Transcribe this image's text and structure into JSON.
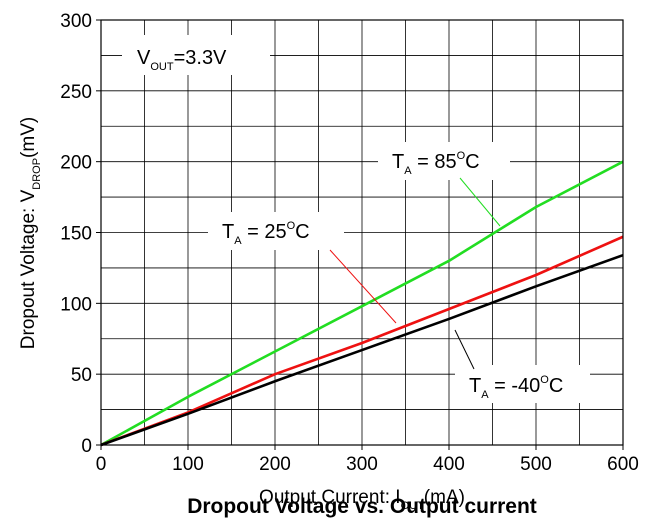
{
  "chart_data": {
    "type": "line",
    "title": "Dropout Voltage vs. Output current",
    "xlabel": {
      "main": "Output Current: I",
      "sub": "OUT",
      "unit": "(mA)"
    },
    "ylabel": {
      "main": "Dropout Voltage: V",
      "sub": "DROP",
      "unit": "(mV)"
    },
    "xlim": [
      0,
      600
    ],
    "ylim": [
      0,
      300
    ],
    "xticks": [
      0,
      100,
      200,
      300,
      400,
      500,
      600
    ],
    "yticks": [
      0,
      50,
      100,
      150,
      200,
      250,
      300
    ],
    "grid": true,
    "condition": {
      "main": "V",
      "sub": "OUT",
      "value": "=3.3V"
    },
    "series": [
      {
        "name": "85",
        "label_main": "T",
        "label_sub": "A",
        "label_value": " = 85",
        "label_sup": "O",
        "label_unit": "C",
        "color": "#22dd22",
        "x": [
          0,
          100,
          200,
          300,
          400,
          500,
          600
        ],
        "y": [
          0,
          34,
          66,
          98,
          130,
          168,
          200
        ]
      },
      {
        "name": "25",
        "label_main": "T",
        "label_sub": "A",
        "label_value": " = 25",
        "label_sup": "O",
        "label_unit": "C",
        "color": "#ee1111",
        "x": [
          0,
          100,
          200,
          300,
          400,
          500,
          600
        ],
        "y": [
          0,
          23,
          50,
          72,
          96,
          120,
          147
        ]
      },
      {
        "name": "-40",
        "label_main": "T",
        "label_sub": "A",
        "label_value": " = -40",
        "label_sup": "O",
        "label_unit": "C",
        "color": "#000000",
        "x": [
          0,
          100,
          200,
          300,
          400,
          500,
          600
        ],
        "y": [
          0,
          22,
          45,
          67,
          89,
          112,
          134
        ]
      }
    ]
  }
}
